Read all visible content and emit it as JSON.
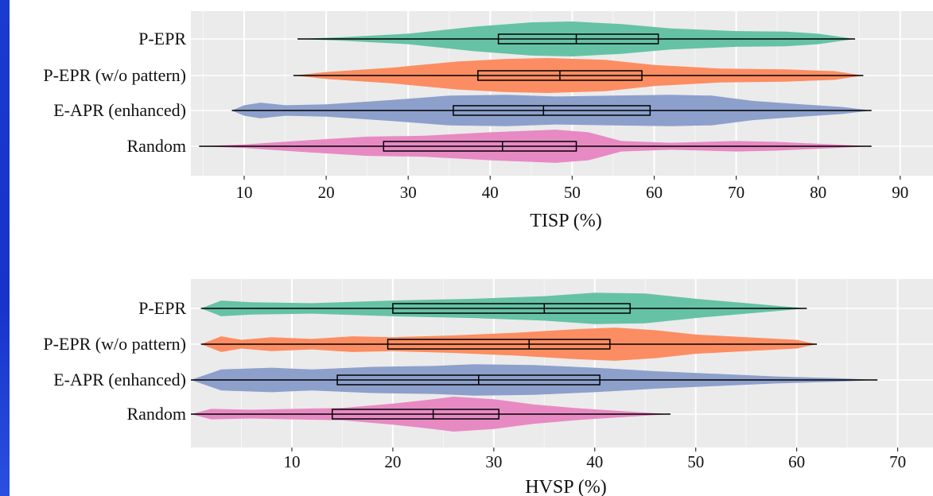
{
  "chart_data": [
    {
      "type": "violin",
      "xlabel": "TISP (%)",
      "xlim": [
        3.5,
        94
      ],
      "xticks": [
        10,
        20,
        30,
        40,
        50,
        60,
        70,
        80,
        90
      ],
      "grid": true,
      "categories": [
        "P-EPR",
        "P-EPR (w/o pattern)",
        "E-APR (enhanced)",
        "Random"
      ],
      "series": [
        {
          "category": "P-EPR",
          "color": "#66c2a5",
          "min": 16.5,
          "q1": 41,
          "median": 50.5,
          "q3": 60.5,
          "max": 84.5,
          "profile": [
            [
              16.5,
              0
            ],
            [
              22,
              0.1
            ],
            [
              30,
              0.3
            ],
            [
              38,
              0.7
            ],
            [
              45,
              0.95
            ],
            [
              50,
              1.0
            ],
            [
              56,
              0.85
            ],
            [
              62,
              0.6
            ],
            [
              70,
              0.45
            ],
            [
              76,
              0.42
            ],
            [
              80,
              0.3
            ],
            [
              84.5,
              0
            ]
          ]
        },
        {
          "category": "P-EPR (w/o pattern)",
          "color": "#fc8d62",
          "min": 16,
          "q1": 38.5,
          "median": 48.5,
          "q3": 58.5,
          "max": 85.5,
          "profile": [
            [
              16,
              0
            ],
            [
              20,
              0.2
            ],
            [
              28,
              0.45
            ],
            [
              36,
              0.8
            ],
            [
              42,
              0.95
            ],
            [
              47,
              1.0
            ],
            [
              54,
              0.9
            ],
            [
              60,
              0.6
            ],
            [
              68,
              0.4
            ],
            [
              76,
              0.35
            ],
            [
              82,
              0.25
            ],
            [
              85.5,
              0
            ]
          ]
        },
        {
          "category": "E-APR (enhanced)",
          "color": "#8da0cb",
          "min": 8.5,
          "q1": 35.5,
          "median": 46.5,
          "q3": 59.5,
          "max": 86.5,
          "profile": [
            [
              8.5,
              0
            ],
            [
              10,
              0.3
            ],
            [
              12,
              0.45
            ],
            [
              15,
              0.3
            ],
            [
              20,
              0.35
            ],
            [
              28,
              0.6
            ],
            [
              35,
              0.85
            ],
            [
              42,
              0.9
            ],
            [
              48,
              0.8
            ],
            [
              55,
              0.85
            ],
            [
              62,
              0.9
            ],
            [
              67,
              0.85
            ],
            [
              72,
              0.55
            ],
            [
              78,
              0.35
            ],
            [
              83,
              0.2
            ],
            [
              86.5,
              0
            ]
          ]
        },
        {
          "category": "Random",
          "color": "#e78ac3",
          "min": 4.5,
          "q1": 27,
          "median": 41.5,
          "q3": 50.5,
          "max": 86.5,
          "profile": [
            [
              4.5,
              0
            ],
            [
              10,
              0.1
            ],
            [
              18,
              0.35
            ],
            [
              25,
              0.55
            ],
            [
              32,
              0.6
            ],
            [
              40,
              0.8
            ],
            [
              48,
              0.95
            ],
            [
              52,
              0.8
            ],
            [
              56,
              0.3
            ],
            [
              62,
              0.2
            ],
            [
              70,
              0.3
            ],
            [
              75,
              0.25
            ],
            [
              82,
              0.1
            ],
            [
              86.5,
              0
            ]
          ]
        }
      ]
    },
    {
      "type": "violin",
      "xlabel": "HVSP (%)",
      "xlim": [
        0,
        73.5
      ],
      "xticks": [
        10,
        20,
        30,
        40,
        50,
        60,
        70
      ],
      "grid": true,
      "categories": [
        "P-EPR",
        "P-EPR (w/o pattern)",
        "E-APR (enhanced)",
        "Random"
      ],
      "series": [
        {
          "category": "P-EPR",
          "color": "#66c2a5",
          "min": 1,
          "q1": 20,
          "median": 35,
          "q3": 43.5,
          "max": 61,
          "profile": [
            [
              1,
              0
            ],
            [
              3,
              0.45
            ],
            [
              6,
              0.35
            ],
            [
              12,
              0.3
            ],
            [
              20,
              0.45
            ],
            [
              28,
              0.55
            ],
            [
              35,
              0.7
            ],
            [
              40,
              0.9
            ],
            [
              45,
              0.85
            ],
            [
              50,
              0.55
            ],
            [
              55,
              0.3
            ],
            [
              61,
              0
            ]
          ]
        },
        {
          "category": "P-EPR (w/o pattern)",
          "color": "#fc8d62",
          "min": 1,
          "q1": 19.5,
          "median": 33.5,
          "q3": 41.5,
          "max": 62,
          "profile": [
            [
              1,
              0
            ],
            [
              3,
              0.45
            ],
            [
              5,
              0.25
            ],
            [
              8,
              0.4
            ],
            [
              12,
              0.3
            ],
            [
              16,
              0.45
            ],
            [
              20,
              0.4
            ],
            [
              26,
              0.5
            ],
            [
              32,
              0.65
            ],
            [
              38,
              0.85
            ],
            [
              42,
              0.95
            ],
            [
              46,
              0.8
            ],
            [
              50,
              0.55
            ],
            [
              55,
              0.4
            ],
            [
              60,
              0.25
            ],
            [
              62,
              0
            ]
          ]
        },
        {
          "category": "E-APR (enhanced)",
          "color": "#8da0cb",
          "min": 0,
          "q1": 14.5,
          "median": 28.5,
          "q3": 40.5,
          "max": 68,
          "profile": [
            [
              0,
              0
            ],
            [
              3,
              0.6
            ],
            [
              8,
              0.7
            ],
            [
              12,
              0.6
            ],
            [
              18,
              0.75
            ],
            [
              24,
              0.8
            ],
            [
              28,
              0.9
            ],
            [
              34,
              0.85
            ],
            [
              40,
              0.7
            ],
            [
              46,
              0.5
            ],
            [
              52,
              0.35
            ],
            [
              58,
              0.2
            ],
            [
              64,
              0.1
            ],
            [
              68,
              0
            ]
          ]
        },
        {
          "category": "Random",
          "color": "#e78ac3",
          "min": 0,
          "q1": 14,
          "median": 24,
          "q3": 30.5,
          "max": 47.5,
          "profile": [
            [
              0,
              0
            ],
            [
              2,
              0.3
            ],
            [
              6,
              0.25
            ],
            [
              10,
              0.3
            ],
            [
              15,
              0.35
            ],
            [
              20,
              0.6
            ],
            [
              24,
              0.85
            ],
            [
              26,
              1.0
            ],
            [
              30,
              0.85
            ],
            [
              34,
              0.55
            ],
            [
              38,
              0.35
            ],
            [
              42,
              0.2
            ],
            [
              47.5,
              0
            ]
          ]
        }
      ]
    }
  ]
}
